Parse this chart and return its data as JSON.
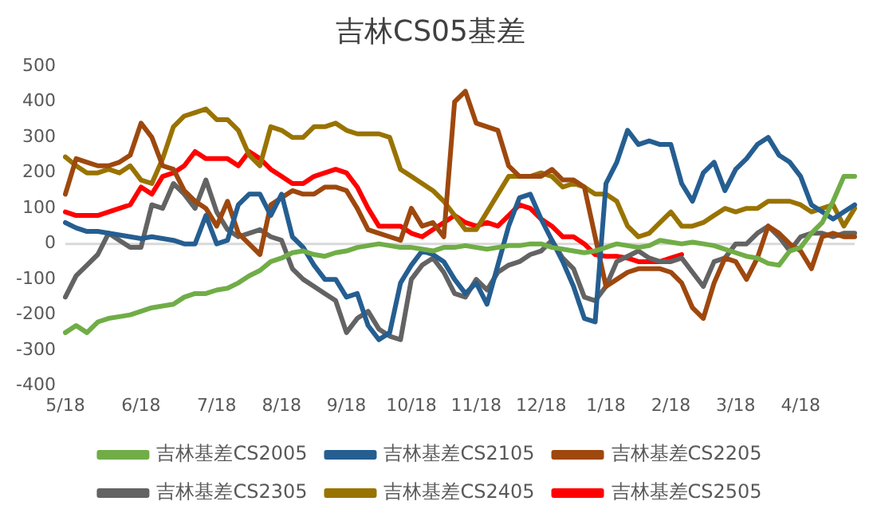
{
  "chart_data": {
    "type": "line",
    "title": "吉林CS05基差",
    "categories": [
      "5/18",
      null,
      null,
      null,
      null,
      null,
      null,
      "6/18",
      null,
      null,
      null,
      null,
      null,
      null,
      "7/18",
      null,
      null,
      null,
      null,
      null,
      "8/18",
      null,
      null,
      null,
      null,
      null,
      "9/18",
      null,
      null,
      null,
      null,
      null,
      "10/18",
      null,
      null,
      null,
      null,
      null,
      "11/18",
      null,
      null,
      null,
      null,
      null,
      "12/18",
      null,
      null,
      null,
      null,
      null,
      "1/18",
      null,
      null,
      null,
      null,
      null,
      "2/18",
      null,
      null,
      null,
      null,
      null,
      "3/18",
      null,
      null,
      null,
      null,
      null,
      "4/18",
      null,
      null,
      null,
      null,
      null
    ],
    "ylim": [
      -400,
      500
    ],
    "yticks": [
      -400,
      -300,
      -200,
      -100,
      0,
      100,
      200,
      300,
      400,
      500
    ],
    "grid": false,
    "ref_lines": [
      {
        "axis": "y",
        "value": 0,
        "color": "#d9d9d9"
      }
    ],
    "legend": "bottom",
    "marker": "none",
    "line_style": "solid",
    "series": [
      {
        "name": "吉林基差CS2005",
        "color": "#70ad47",
        "values": [
          -250,
          -230,
          -250,
          -220,
          -210,
          -205,
          -200,
          -190,
          -180,
          -175,
          -170,
          -150,
          -140,
          -140,
          -130,
          -125,
          -110,
          -90,
          -75,
          -50,
          -40,
          -25,
          -20,
          -30,
          -35,
          -25,
          -20,
          -10,
          -5,
          0,
          -5,
          -10,
          -10,
          -15,
          -20,
          -10,
          -10,
          -5,
          -10,
          -15,
          -10,
          -5,
          -5,
          0,
          0,
          -10,
          -15,
          -20,
          -25,
          -20,
          -10,
          0,
          -5,
          -10,
          -5,
          10,
          5,
          0,
          5,
          0,
          -5,
          -15,
          -25,
          -35,
          -40,
          -55,
          -60,
          -20,
          -10,
          30,
          60,
          120,
          190,
          190
        ]
      },
      {
        "name": "吉林基差CS2105",
        "color": "#255e91",
        "values": [
          60,
          45,
          35,
          35,
          30,
          25,
          20,
          15,
          20,
          15,
          10,
          0,
          0,
          80,
          0,
          10,
          110,
          140,
          140,
          80,
          140,
          20,
          -10,
          -60,
          -100,
          -100,
          -150,
          -140,
          -230,
          -270,
          -250,
          -110,
          -60,
          -20,
          -30,
          -50,
          -100,
          -140,
          -110,
          -170,
          -60,
          50,
          130,
          140,
          70,
          10,
          -50,
          -120,
          -210,
          -220,
          170,
          230,
          320,
          280,
          290,
          280,
          280,
          170,
          120,
          200,
          230,
          150,
          210,
          240,
          280,
          300,
          250,
          230,
          190,
          110,
          90,
          70,
          90,
          110
        ]
      },
      {
        "name": "吉林基差CS2205",
        "color": "#9e480e",
        "values": [
          140,
          240,
          230,
          220,
          220,
          230,
          250,
          340,
          300,
          220,
          210,
          150,
          120,
          100,
          50,
          120,
          30,
          0,
          -30,
          110,
          130,
          150,
          140,
          140,
          160,
          160,
          150,
          100,
          40,
          30,
          20,
          10,
          100,
          50,
          60,
          20,
          400,
          430,
          340,
          330,
          320,
          220,
          190,
          190,
          190,
          210,
          180,
          180,
          160,
          20,
          -120,
          -100,
          -80,
          -70,
          -70,
          -70,
          -80,
          -110,
          -180,
          -210,
          -110,
          -40,
          -50,
          -100,
          -40,
          50,
          30,
          0,
          -20,
          -70,
          20,
          30,
          20,
          20
        ]
      },
      {
        "name": "吉林基差CS2305",
        "color": "#636363",
        "values": [
          -150,
          -90,
          -60,
          -30,
          30,
          10,
          -10,
          -10,
          110,
          100,
          170,
          140,
          100,
          180,
          90,
          40,
          20,
          30,
          40,
          20,
          10,
          -70,
          -100,
          -120,
          -140,
          -160,
          -250,
          -210,
          -190,
          -240,
          -260,
          -270,
          -100,
          -60,
          -40,
          -80,
          -140,
          -150,
          -100,
          -130,
          -80,
          -60,
          -50,
          -30,
          -20,
          10,
          -40,
          -70,
          -150,
          -160,
          -120,
          -50,
          -35,
          -20,
          -40,
          -50,
          -50,
          -40,
          -80,
          -120,
          -50,
          -40,
          0,
          0,
          30,
          50,
          20,
          -20,
          20,
          30,
          30,
          20,
          30,
          30
        ]
      },
      {
        "name": "吉林基差CS2405",
        "color": "#997300",
        "values": [
          245,
          220,
          200,
          200,
          210,
          200,
          220,
          180,
          170,
          240,
          330,
          360,
          370,
          380,
          350,
          350,
          320,
          250,
          220,
          330,
          320,
          300,
          300,
          330,
          330,
          340,
          320,
          310,
          310,
          310,
          300,
          210,
          190,
          170,
          150,
          120,
          80,
          40,
          40,
          90,
          140,
          190,
          190,
          190,
          200,
          190,
          160,
          170,
          160,
          140,
          140,
          120,
          50,
          20,
          30,
          60,
          90,
          50,
          50,
          60,
          80,
          100,
          90,
          100,
          100,
          120,
          120,
          120,
          110,
          90,
          100,
          110,
          50,
          100
        ]
      },
      {
        "name": "吉林基差CS2505",
        "color": "#ff0000",
        "values": [
          90,
          80,
          80,
          80,
          90,
          100,
          110,
          160,
          140,
          190,
          200,
          220,
          260,
          240,
          240,
          240,
          220,
          260,
          240,
          210,
          190,
          170,
          170,
          190,
          200,
          210,
          200,
          160,
          100,
          50,
          50,
          50,
          30,
          20,
          40,
          60,
          80,
          60,
          50,
          60,
          50,
          80,
          110,
          100,
          70,
          50,
          20,
          20,
          0,
          -30,
          -35,
          -35,
          -40,
          -50,
          -50,
          -50,
          -40,
          -30,
          null,
          null,
          null,
          null,
          null,
          null,
          null,
          null,
          null,
          null,
          null,
          null,
          null,
          null,
          null,
          null
        ]
      }
    ]
  }
}
